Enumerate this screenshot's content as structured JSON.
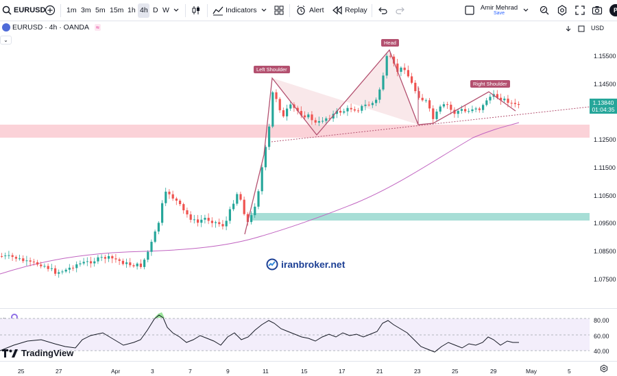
{
  "toolbar": {
    "symbol": "EURUSD",
    "timeframes": [
      "1m",
      "3m",
      "5m",
      "15m",
      "1h",
      "4h",
      "D",
      "W"
    ],
    "active_timeframe": "4h",
    "indicators_label": "Indicators",
    "alert_label": "Alert",
    "replay_label": "Replay",
    "user_name": "Amir Mehrad",
    "save_label": "Save",
    "avatar_letter": "P"
  },
  "legend": {
    "title": "EURUSD · 4h · OANDA",
    "currency": "USD"
  },
  "price_axis": {
    "labels": [
      "1.15500",
      "1.14500",
      "1.12500",
      "1.11500",
      "1.10500",
      "1.09500",
      "1.08500",
      "1.07500"
    ],
    "last_price": "1.13840",
    "countdown": "01:04:35"
  },
  "rsi_axis": {
    "labels": [
      "80.00",
      "60.00",
      "40.00"
    ]
  },
  "time_axis": {
    "labels": [
      "25",
      "27",
      "Apr",
      "3",
      "7",
      "9",
      "11",
      "15",
      "17",
      "21",
      "23",
      "25",
      "29",
      "May",
      "5"
    ]
  },
  "pattern_labels": {
    "left_shoulder": "Left Shoulder",
    "head": "Head",
    "right_shoulder": "Right Shoulder"
  },
  "watermark": "iranbroker.net",
  "branding": "TradingView",
  "colors": {
    "bull": "#26a69a",
    "bear": "#ef5350",
    "pattern": "#b3506f",
    "resistance_zone": "#f9c4cc",
    "support_zone": "#9fdcd4",
    "ma": "#c062c0",
    "rsi": "#131722"
  }
}
